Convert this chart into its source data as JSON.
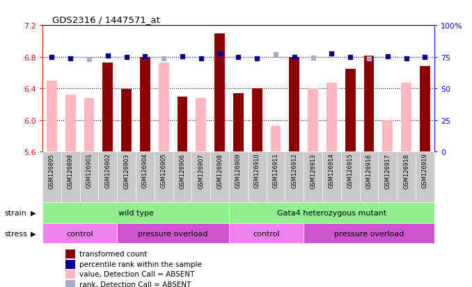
{
  "title": "GDS2316 / 1447571_at",
  "samples": [
    "GSM126895",
    "GSM126898",
    "GSM126901",
    "GSM126902",
    "GSM126903",
    "GSM126904",
    "GSM126905",
    "GSM126906",
    "GSM126907",
    "GSM126908",
    "GSM126909",
    "GSM126910",
    "GSM126911",
    "GSM126912",
    "GSM126913",
    "GSM126914",
    "GSM126915",
    "GSM126916",
    "GSM126917",
    "GSM126918",
    "GSM126919"
  ],
  "red_values": [
    6.5,
    null,
    null,
    6.73,
    6.39,
    6.8,
    6.73,
    6.3,
    null,
    7.1,
    6.34,
    6.4,
    null,
    6.8,
    null,
    null,
    6.65,
    6.82,
    null,
    null,
    6.68
  ],
  "pink_values": [
    6.5,
    6.32,
    6.28,
    null,
    null,
    null,
    6.73,
    null,
    6.28,
    null,
    null,
    null,
    5.93,
    null,
    6.4,
    6.47,
    null,
    null,
    6.0,
    6.47,
    null
  ],
  "blue_values": [
    6.8,
    6.78,
    null,
    6.82,
    6.8,
    6.81,
    null,
    6.81,
    6.78,
    6.84,
    6.8,
    6.78,
    null,
    6.8,
    null,
    6.84,
    6.8,
    null,
    6.81,
    6.78,
    6.8
  ],
  "lightblue_values": [
    null,
    null,
    6.77,
    null,
    null,
    null,
    6.78,
    null,
    null,
    null,
    null,
    null,
    6.83,
    null,
    6.79,
    null,
    null,
    6.78,
    null,
    null,
    null
  ],
  "ylim_left": [
    5.6,
    7.2
  ],
  "ylim_right": [
    0,
    100
  ],
  "yticks_left": [
    5.6,
    6.0,
    6.4,
    6.8,
    7.2
  ],
  "yticks_right": [
    0,
    25,
    50,
    75,
    100
  ],
  "red_color": "#8B0000",
  "pink_color": "#FFB6C1",
  "blue_color": "#00008B",
  "lightblue_color": "#AAAACC",
  "strain_green": "#90EE90",
  "stress_light": "#EE82EE",
  "stress_dark": "#CC55CC",
  "tick_bg": "#C8C8C8",
  "legend_labels": [
    "transformed count",
    "percentile rank within the sample",
    "value, Detection Call = ABSENT",
    "rank, Detection Call = ABSENT"
  ],
  "legend_colors": [
    "#8B0000",
    "#00008B",
    "#FFB6C1",
    "#AAAACC"
  ],
  "bar_width": 0.55
}
